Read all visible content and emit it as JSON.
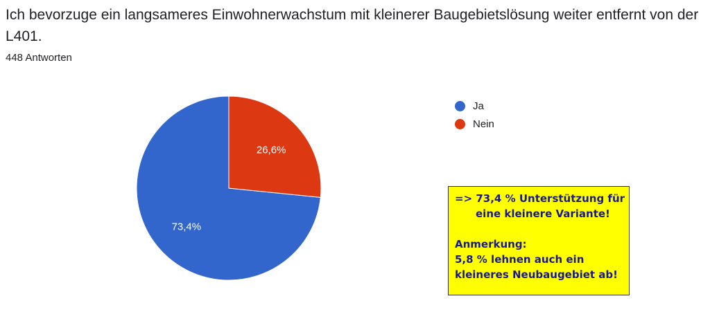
{
  "question": {
    "title": "Ich bevorzuge ein langsameres Einwohnerwachstum mit kleinerer Baugebietslösung weiter entfernt von der L401.",
    "response_count": "448 Antworten"
  },
  "chart_data": {
    "type": "pie",
    "title": "",
    "slices": [
      {
        "label": "Ja",
        "value": 73.4,
        "display": "73,4%",
        "color": "#3366cc"
      },
      {
        "label": "Nein",
        "value": 26.6,
        "display": "26,6%",
        "color": "#dc3912"
      }
    ],
    "legend_placement": "right"
  },
  "annotation": {
    "line1": "=> 73,4 % Unterstützung für",
    "line2": "eine kleinere Variante!",
    "line3": "Anmerkung:",
    "line4": "5,8 % lehnen auch ein",
    "line5": "kleineres Neubaugebiet ab!",
    "background": "#ffff00",
    "text_color": "#1a1a8c"
  }
}
